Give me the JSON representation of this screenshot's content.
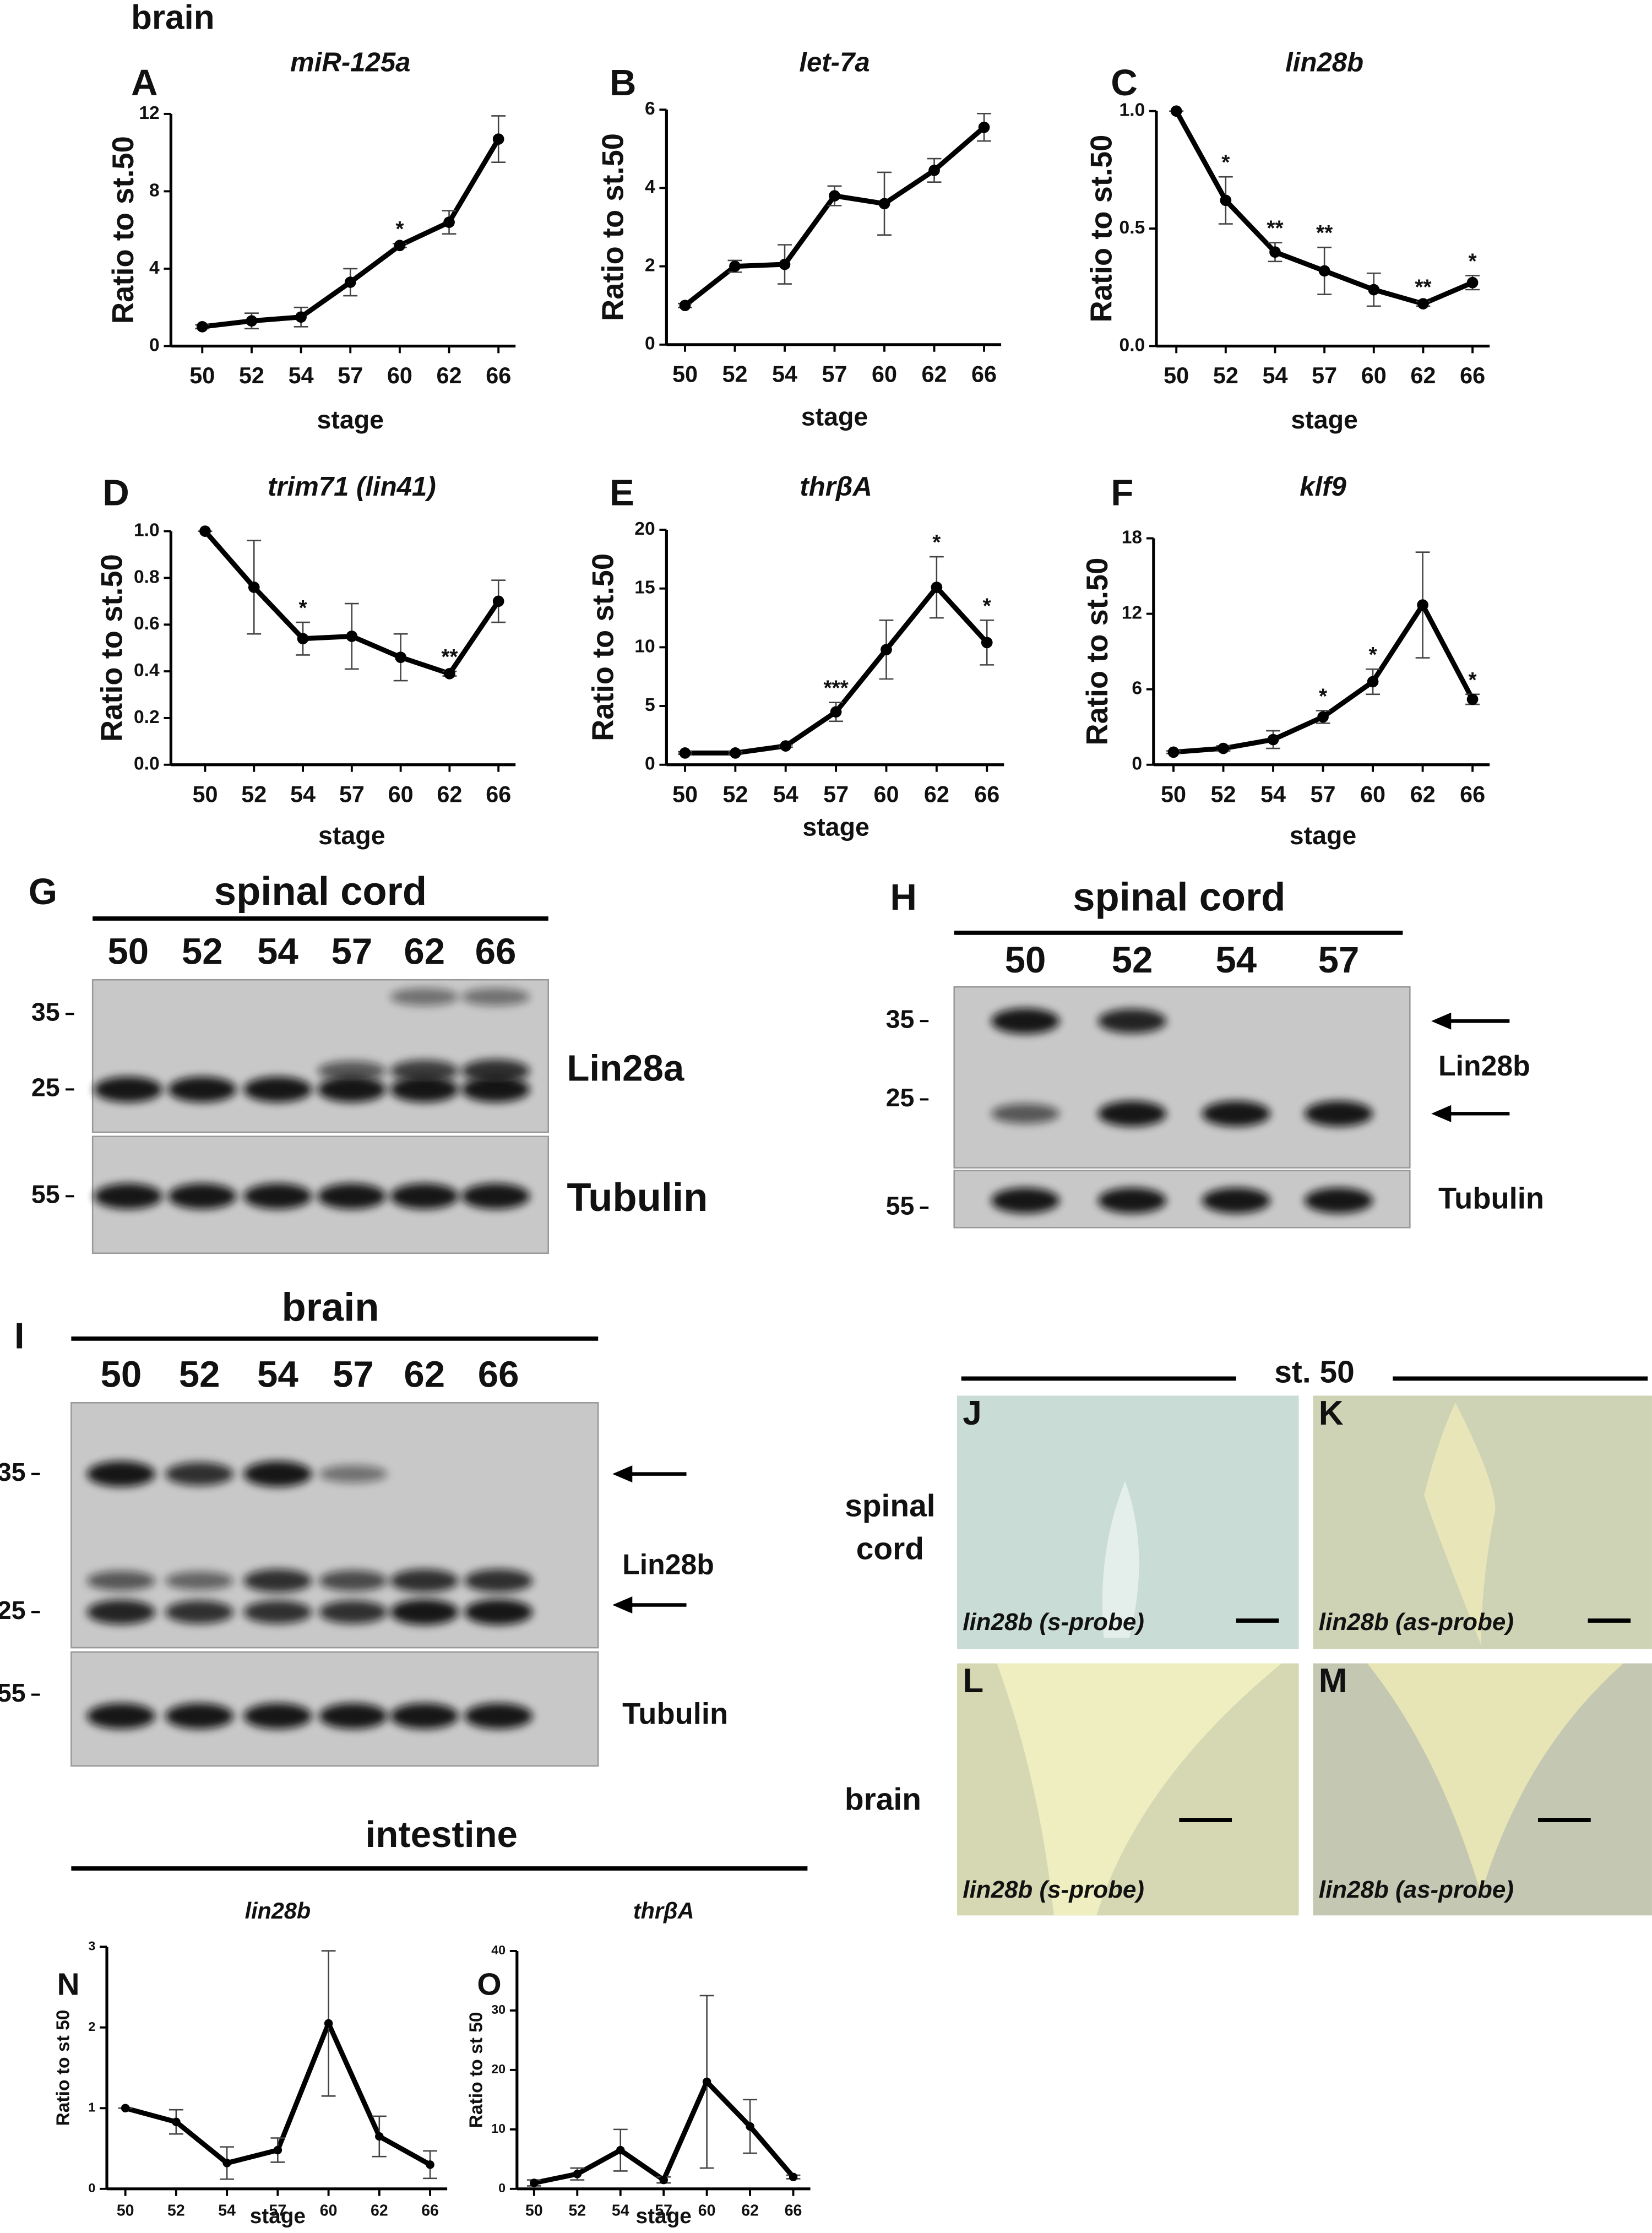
{
  "figure_title": "brain",
  "chart_data": [
    {
      "type": "line",
      "panel": "A",
      "title": "miR-125a",
      "x_label": "stage",
      "y_label": "Ratio to st.50",
      "categories": [
        "50",
        "52",
        "54",
        "57",
        "60",
        "62",
        "66"
      ],
      "values": [
        1,
        1.3,
        1.5,
        3.3,
        5.2,
        6.4,
        10.7
      ],
      "errors": [
        0.1,
        0.4,
        0.5,
        0.7,
        0.1,
        0.6,
        1.2
      ],
      "annotations": [
        null,
        null,
        null,
        null,
        "*",
        null,
        null
      ],
      "ylim": [
        0,
        12
      ],
      "yticks": [
        0,
        4,
        8,
        12
      ],
      "color": "#000000"
    },
    {
      "type": "line",
      "panel": "B",
      "title": "let-7a",
      "x_label": "stage",
      "y_label": "Ratio to st.50",
      "categories": [
        "50",
        "52",
        "54",
        "57",
        "60",
        "62",
        "66"
      ],
      "values": [
        1,
        2,
        2.05,
        3.8,
        3.6,
        4.45,
        5.55
      ],
      "errors": [
        0.05,
        0.15,
        0.5,
        0.25,
        0.8,
        0.3,
        0.35
      ],
      "annotations": [
        null,
        null,
        null,
        null,
        null,
        null,
        null
      ],
      "ylim": [
        0,
        6
      ],
      "yticks": [
        0,
        2,
        4,
        6
      ],
      "color": "#000000"
    },
    {
      "type": "line",
      "panel": "C",
      "title": "lin28b",
      "x_label": "stage",
      "y_label": "Ratio to st.50",
      "categories": [
        "50",
        "52",
        "54",
        "57",
        "60",
        "62",
        "66"
      ],
      "values": [
        1,
        0.62,
        0.4,
        0.32,
        0.24,
        0.18,
        0.27
      ],
      "errors": [
        0,
        0.1,
        0.04,
        0.1,
        0.07,
        0.01,
        0.03
      ],
      "annotations": [
        null,
        "*",
        "**",
        "**",
        null,
        "**",
        "*"
      ],
      "ylim": [
        0,
        1
      ],
      "yticks": [
        {
          "value": 0,
          "label": "0.0"
        },
        0.5,
        {
          "value": 1,
          "label": "1.0"
        }
      ],
      "color": "#000000"
    },
    {
      "type": "line",
      "panel": "D",
      "title": "trim71 (lin41)",
      "x_label": "stage",
      "y_label": "Ratio to st.50",
      "categories": [
        "50",
        "52",
        "54",
        "57",
        "60",
        "62",
        "66"
      ],
      "values": [
        1,
        0.76,
        0.54,
        0.55,
        0.46,
        0.39,
        0.7
      ],
      "errors": [
        0,
        0.2,
        0.07,
        0.14,
        0.1,
        0.01,
        0.09
      ],
      "annotations": [
        null,
        null,
        "*",
        null,
        null,
        "**",
        null
      ],
      "ylim": [
        0,
        1
      ],
      "yticks": [
        {
          "value": 0,
          "label": "0.0"
        },
        0.2,
        0.4,
        0.6,
        0.8,
        {
          "value": 1,
          "label": "1.0"
        }
      ],
      "color": "#000000"
    },
    {
      "type": "line",
      "panel": "E",
      "title": "thrβA",
      "x_label": "stage",
      "y_label": "Ratio to st.50",
      "categories": [
        "50",
        "52",
        "54",
        "57",
        "60",
        "62",
        "66"
      ],
      "values": [
        1,
        1,
        1.6,
        4.5,
        9.8,
        15.1,
        10.4
      ],
      "errors": [
        0.1,
        0.1,
        0.1,
        0.8,
        2.5,
        2.6,
        1.9
      ],
      "annotations": [
        null,
        null,
        null,
        "***",
        null,
        "*",
        "*"
      ],
      "ylim": [
        0,
        20
      ],
      "yticks": [
        0,
        5,
        10,
        15,
        20
      ],
      "color": "#000000"
    },
    {
      "type": "line",
      "panel": "F",
      "title": "klf9",
      "x_label": "stage",
      "y_label": "Ratio to st.50",
      "categories": [
        "50",
        "52",
        "54",
        "57",
        "60",
        "62",
        "66"
      ],
      "values": [
        1,
        1.3,
        2,
        3.8,
        6.6,
        12.7,
        5.2
      ],
      "errors": [
        0.1,
        0.2,
        0.7,
        0.5,
        1,
        4.2,
        0.4
      ],
      "annotations": [
        null,
        null,
        null,
        "*",
        "*",
        null,
        "*"
      ],
      "ylim": [
        0,
        18
      ],
      "yticks": [
        0,
        6,
        12,
        18
      ],
      "color": "#000000"
    },
    {
      "type": "line",
      "panel": "N",
      "title": "lin28b",
      "x_label": "stage",
      "y_label": "Ratio to st 50",
      "categories": [
        "50",
        "52",
        "54",
        "57",
        "60",
        "62",
        "66"
      ],
      "values": [
        1,
        0.83,
        0.32,
        0.48,
        2.05,
        0.65,
        0.3
      ],
      "errors": [
        0,
        0.15,
        0.2,
        0.15,
        0.9,
        0.25,
        0.17
      ],
      "annotations": [
        null,
        null,
        null,
        null,
        null,
        null,
        null
      ],
      "ylim": [
        0,
        3
      ],
      "yticks": [
        0,
        1,
        2,
        3
      ],
      "color": "#000000"
    },
    {
      "type": "line",
      "panel": "O",
      "title": "thrβA",
      "x_label": "stage",
      "y_label": "Ratio to st 50",
      "categories": [
        "50",
        "52",
        "54",
        "57",
        "60",
        "62",
        "66"
      ],
      "values": [
        1,
        2.5,
        6.5,
        1.5,
        18,
        10.5,
        2
      ],
      "errors": [
        0.5,
        1,
        3.5,
        0.5,
        14.5,
        4.5,
        0.3
      ],
      "annotations": [
        null,
        null,
        null,
        null,
        null,
        null,
        null
      ],
      "ylim": [
        0,
        40
      ],
      "yticks": [
        0,
        10,
        20,
        30,
        40
      ],
      "color": "#000000"
    }
  ],
  "blots": [
    {
      "panel": "G",
      "header": "spinal cord",
      "lanes": [
        "50",
        "52",
        "54",
        "57",
        "62",
        "66"
      ],
      "markers": [
        35,
        25,
        55
      ],
      "bands": [
        "Lin28a",
        "Tubulin"
      ]
    },
    {
      "panel": "H",
      "header": "spinal cord",
      "lanes": [
        "50",
        "52",
        "54",
        "57"
      ],
      "markers": [
        35,
        25,
        55
      ],
      "bands": [
        "Lin28b",
        "Tubulin"
      ]
    },
    {
      "panel": "I",
      "header": "brain",
      "lanes": [
        "50",
        "52",
        "54",
        "57",
        "62",
        "66"
      ],
      "markers": [
        35,
        25,
        55
      ],
      "bands": [
        "Lin28b",
        "Tubulin"
      ]
    }
  ],
  "micrographs": {
    "header": "st. 50",
    "rows": [
      "spinal cord",
      "brain"
    ],
    "panels": [
      {
        "panel": "J",
        "label": "lin28b (s-probe)"
      },
      {
        "panel": "K",
        "label": "lin28b (as-probe)"
      },
      {
        "panel": "L",
        "label": "lin28b (s-probe)"
      },
      {
        "panel": "M",
        "label": "lin28b (as-probe)"
      }
    ]
  },
  "intestine_title": "intestine"
}
